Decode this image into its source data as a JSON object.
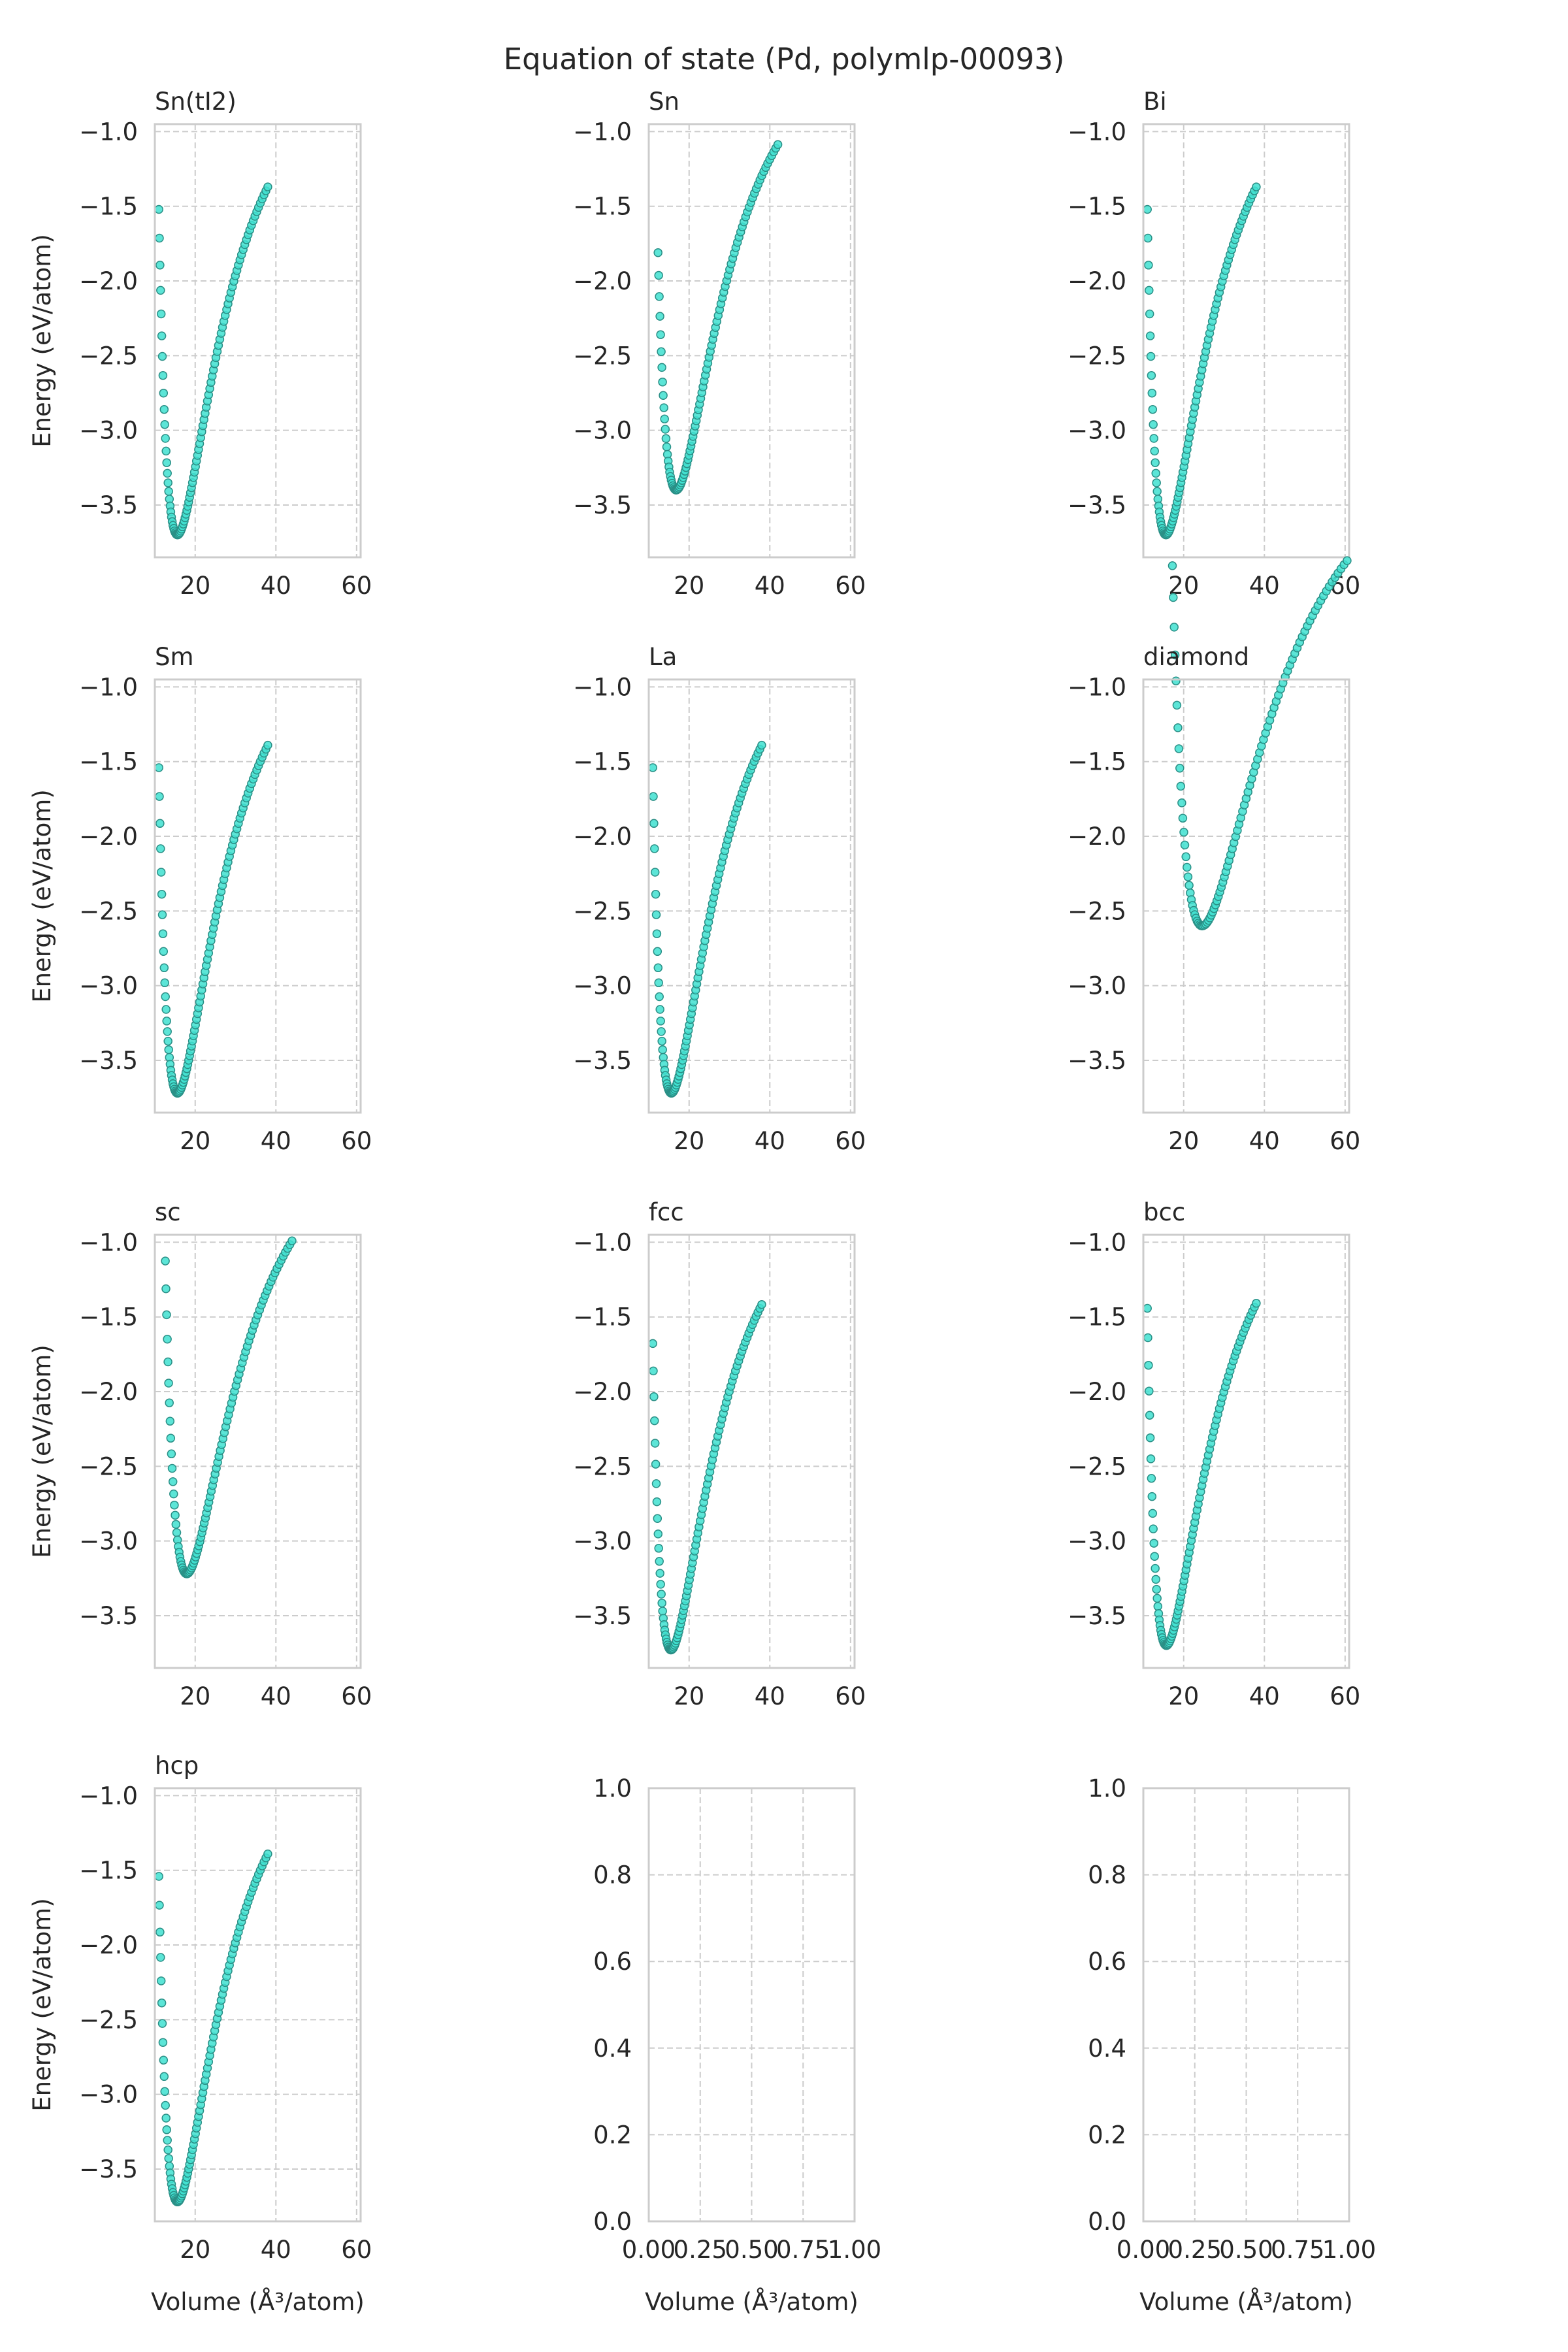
{
  "figure": {
    "title": "Equation of state (Pd, polymlp-00093)",
    "xlabel": "Volume (Å³/atom)",
    "ylabel": "Energy (eV/atom)"
  },
  "colors": {
    "marker_fill": "#40e0d0",
    "marker_edge": "#2a8f86",
    "axes_edge": "#cccccc",
    "grid": "#cccccc",
    "text": "#262626",
    "background": "#ffffff"
  },
  "chart_data": [
    {
      "type": "scatter",
      "title": "Sn(tI2)",
      "xlim": [
        10,
        61
      ],
      "ylim": [
        -3.85,
        -0.95
      ],
      "xticks": [
        20,
        40,
        60
      ],
      "yticks": [
        -1.0,
        -1.5,
        -2.0,
        -2.5,
        -3.0,
        -3.5
      ],
      "grid": true,
      "series": [
        {
          "v_min": 11.0,
          "v_max": 38.0,
          "v0": 15.6,
          "e0": -3.7,
          "b": 0.043,
          "n": 100
        }
      ]
    },
    {
      "type": "scatter",
      "title": "Sn",
      "xlim": [
        10,
        61
      ],
      "ylim": [
        -3.85,
        -0.95
      ],
      "xticks": [
        20,
        40,
        60
      ],
      "yticks": [
        -1.0,
        -1.5,
        -2.0,
        -2.5,
        -3.0,
        -3.5
      ],
      "grid": true,
      "series": [
        {
          "v_min": 12.3,
          "v_max": 42.0,
          "v0": 16.8,
          "e0": -3.4,
          "b": 0.036,
          "n": 100
        }
      ]
    },
    {
      "type": "scatter",
      "title": "Bi",
      "xlim": [
        10,
        61
      ],
      "ylim": [
        -3.85,
        -0.95
      ],
      "xticks": [
        20,
        40,
        60
      ],
      "yticks": [
        -1.0,
        -1.5,
        -2.0,
        -2.5,
        -3.0,
        -3.5
      ],
      "grid": true,
      "series": [
        {
          "v_min": 11.0,
          "v_max": 38.0,
          "v0": 15.6,
          "e0": -3.7,
          "b": 0.043,
          "n": 100
        }
      ]
    },
    {
      "type": "scatter",
      "title": "Sm",
      "xlim": [
        10,
        61
      ],
      "ylim": [
        -3.85,
        -0.95
      ],
      "xticks": [
        20,
        40,
        60
      ],
      "yticks": [
        -1.0,
        -1.5,
        -2.0,
        -2.5,
        -3.0,
        -3.5
      ],
      "grid": true,
      "series": [
        {
          "v_min": 11.0,
          "v_max": 38.0,
          "v0": 15.6,
          "e0": -3.72,
          "b": 0.043,
          "n": 100
        }
      ]
    },
    {
      "type": "scatter",
      "title": "La",
      "xlim": [
        10,
        61
      ],
      "ylim": [
        -3.85,
        -0.95
      ],
      "xticks": [
        20,
        40,
        60
      ],
      "yticks": [
        -1.0,
        -1.5,
        -2.0,
        -2.5,
        -3.0,
        -3.5
      ],
      "grid": true,
      "series": [
        {
          "v_min": 11.0,
          "v_max": 38.0,
          "v0": 15.6,
          "e0": -3.72,
          "b": 0.043,
          "n": 100
        }
      ]
    },
    {
      "type": "scatter",
      "title": "diamond",
      "xlim": [
        10,
        61
      ],
      "ylim": [
        -3.85,
        -0.95
      ],
      "xticks": [
        20,
        40,
        60
      ],
      "yticks": [
        -1.0,
        -1.5,
        -2.0,
        -2.5,
        -3.0,
        -3.5
      ],
      "grid": true,
      "series": [
        {
          "v_min": 17.2,
          "v_max": 60.5,
          "v0": 24.6,
          "e0": -2.6,
          "b": 0.018,
          "n": 100
        }
      ]
    },
    {
      "type": "scatter",
      "title": "sc",
      "xlim": [
        10,
        61
      ],
      "ylim": [
        -3.85,
        -0.95
      ],
      "xticks": [
        20,
        40,
        60
      ],
      "yticks": [
        -1.0,
        -1.5,
        -2.0,
        -2.5,
        -3.0,
        -3.5
      ],
      "grid": true,
      "series": [
        {
          "v_min": 12.6,
          "v_max": 44.0,
          "v0": 17.9,
          "e0": -3.22,
          "b": 0.031,
          "n": 100
        }
      ]
    },
    {
      "type": "scatter",
      "title": "fcc",
      "xlim": [
        10,
        61
      ],
      "ylim": [
        -3.85,
        -0.95
      ],
      "xticks": [
        20,
        40,
        60
      ],
      "yticks": [
        -1.0,
        -1.5,
        -2.0,
        -2.5,
        -3.0,
        -3.5
      ],
      "grid": true,
      "series": [
        {
          "v_min": 11.0,
          "v_max": 38.0,
          "v0": 15.5,
          "e0": -3.73,
          "b": 0.043,
          "n": 100
        }
      ]
    },
    {
      "type": "scatter",
      "title": "bcc",
      "xlim": [
        10,
        61
      ],
      "ylim": [
        -3.85,
        -0.95
      ],
      "xticks": [
        20,
        40,
        60
      ],
      "yticks": [
        -1.0,
        -1.5,
        -2.0,
        -2.5,
        -3.0,
        -3.5
      ],
      "grid": true,
      "series": [
        {
          "v_min": 11.0,
          "v_max": 38.0,
          "v0": 15.7,
          "e0": -3.7,
          "b": 0.042,
          "n": 100
        }
      ]
    },
    {
      "type": "scatter",
      "title": "hcp",
      "xlim": [
        10,
        61
      ],
      "ylim": [
        -3.85,
        -0.95
      ],
      "xticks": [
        20,
        40,
        60
      ],
      "yticks": [
        -1.0,
        -1.5,
        -2.0,
        -2.5,
        -3.0,
        -3.5
      ],
      "grid": true,
      "series": [
        {
          "v_min": 11.0,
          "v_max": 38.0,
          "v0": 15.6,
          "e0": -3.72,
          "b": 0.043,
          "n": 100
        }
      ]
    },
    {
      "type": "scatter",
      "title": "",
      "xlim": [
        0,
        1
      ],
      "ylim": [
        0,
        1
      ],
      "xticks": [
        0.0,
        0.25,
        0.5,
        0.75,
        1.0
      ],
      "yticks": [
        0.0,
        0.2,
        0.4,
        0.6,
        0.8,
        1.0
      ],
      "grid": true,
      "series": []
    },
    {
      "type": "scatter",
      "title": "",
      "xlim": [
        0,
        1
      ],
      "ylim": [
        0,
        1
      ],
      "xticks": [
        0.0,
        0.25,
        0.5,
        0.75,
        1.0
      ],
      "yticks": [
        0.0,
        0.2,
        0.4,
        0.6,
        0.8,
        1.0
      ],
      "grid": true,
      "series": []
    }
  ]
}
